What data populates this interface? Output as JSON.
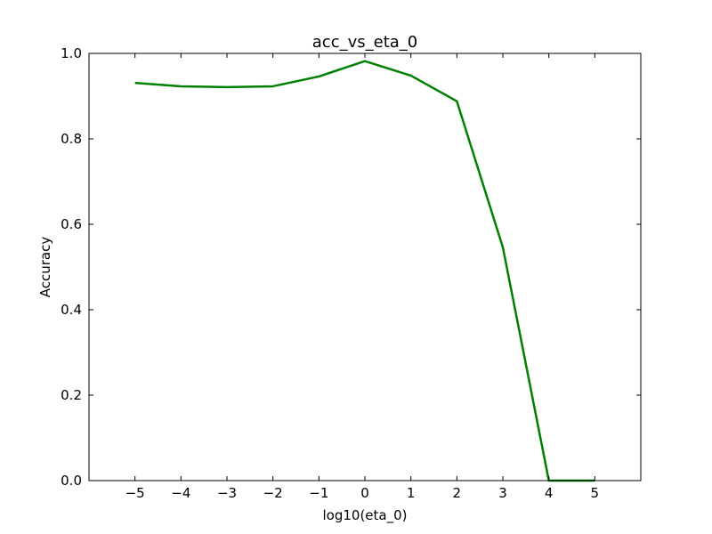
{
  "chart_data": {
    "type": "line",
    "title": "acc_vs_eta_0",
    "xlabel": "log10(eta_0)",
    "ylabel": "Accuracy",
    "xlim": [
      -6,
      6
    ],
    "ylim": [
      0.0,
      1.0
    ],
    "xticks": [
      -5,
      -4,
      -3,
      -2,
      -1,
      0,
      1,
      2,
      3,
      4,
      5
    ],
    "xtick_labels": [
      "−5",
      "−4",
      "−3",
      "−2",
      "−1",
      "0",
      "1",
      "2",
      "3",
      "4",
      "5"
    ],
    "yticks": [
      0.0,
      0.2,
      0.4,
      0.6,
      0.8,
      1.0
    ],
    "ytick_labels": [
      "0.0",
      "0.2",
      "0.4",
      "0.6",
      "0.8",
      "1.0"
    ],
    "grid": false,
    "series": [
      {
        "color": "#008000",
        "x": [
          -5,
          -4,
          -3,
          -2,
          -1,
          0,
          1,
          2,
          3,
          4,
          5
        ],
        "y": [
          0.931,
          0.923,
          0.921,
          0.923,
          0.946,
          0.982,
          0.948,
          0.888,
          0.546,
          0.0,
          0.0
        ]
      }
    ]
  }
}
